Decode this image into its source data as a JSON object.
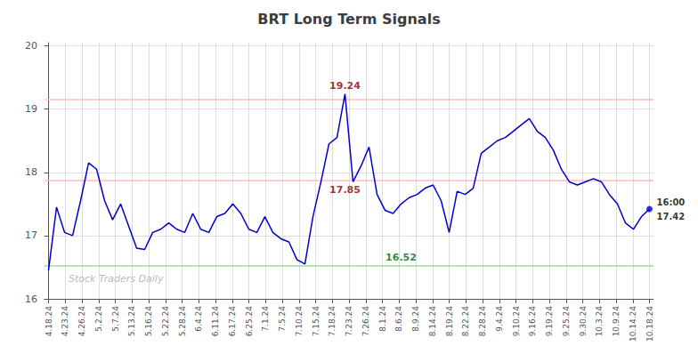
{
  "chart_data": {
    "type": "line",
    "title": "BRT Long Term Signals",
    "x": [
      0,
      1,
      2,
      3,
      4,
      5,
      6,
      7,
      8,
      9,
      10,
      11,
      12,
      13,
      14,
      15,
      16,
      17,
      18,
      19,
      20,
      21,
      22,
      23,
      24,
      25,
      26,
      27,
      28,
      29,
      30,
      31,
      32,
      33,
      34,
      35,
      36,
      37,
      38,
      39,
      40,
      41,
      42,
      43,
      44,
      45,
      46,
      47,
      48,
      49,
      50,
      51,
      52,
      53,
      54,
      55,
      56,
      57,
      58,
      59,
      60,
      61,
      62,
      63,
      64,
      65,
      66,
      67,
      68,
      69,
      70,
      71,
      72,
      73,
      74,
      75
    ],
    "values": [
      16.45,
      17.45,
      17.05,
      17.0,
      17.55,
      18.15,
      18.05,
      17.55,
      17.25,
      17.5,
      17.15,
      16.8,
      16.78,
      17.05,
      17.1,
      17.2,
      17.1,
      17.05,
      17.35,
      17.1,
      17.05,
      17.3,
      17.35,
      17.5,
      17.35,
      17.1,
      17.05,
      17.3,
      17.05,
      16.95,
      16.9,
      16.62,
      16.55,
      17.3,
      17.85,
      18.45,
      18.55,
      19.24,
      17.85,
      18.1,
      18.4,
      17.65,
      17.4,
      17.35,
      17.5,
      17.6,
      17.65,
      17.75,
      17.8,
      17.55,
      17.05,
      17.7,
      17.65,
      17.75,
      18.3,
      18.4,
      18.5,
      18.55,
      18.65,
      18.75,
      18.85,
      18.65,
      18.55,
      18.35,
      18.05,
      17.85,
      17.8,
      17.85,
      17.9,
      17.85,
      17.65,
      17.5,
      17.2,
      17.1,
      17.3,
      17.42
    ],
    "color": "#0000cc",
    "xlim": [
      -0.5,
      75.5
    ],
    "xticks": [
      {
        "value": 0,
        "label": "4.18.24"
      },
      {
        "value": 2.0833333333333335,
        "label": "4.23.24"
      },
      {
        "value": 4.166666666666667,
        "label": "4.26.24"
      },
      {
        "value": 6.25,
        "label": "5.2.24"
      },
      {
        "value": 8.333333333333334,
        "label": "5.7.24"
      },
      {
        "value": 10.416666666666666,
        "label": "5.13.24"
      },
      {
        "value": 12.5,
        "label": "5.16.24"
      },
      {
        "value": 14.583333333333334,
        "label": "5.22.24"
      },
      {
        "value": 16.666666666666668,
        "label": "5.28.24"
      },
      {
        "value": 18.75,
        "label": "6.4.24"
      },
      {
        "value": 20.833333333333336,
        "label": "6.11.24"
      },
      {
        "value": 22.916666666666668,
        "label": "6.17.24"
      },
      {
        "value": 25,
        "label": "6.25.24"
      },
      {
        "value": 27.083333333333336,
        "label": "7.1.24"
      },
      {
        "value": 29.166666666666668,
        "label": "7.5.24"
      },
      {
        "value": 31.25,
        "label": "7.10.24"
      },
      {
        "value": 33.333333333333336,
        "label": "7.15.24"
      },
      {
        "value": 35.416666666666664,
        "label": "7.18.24"
      },
      {
        "value": 37.5,
        "label": "7.23.24"
      },
      {
        "value": 39.583333333333336,
        "label": "7.26.24"
      },
      {
        "value": 41.66666666666667,
        "label": "8.1.24"
      },
      {
        "value": 43.75,
        "label": "8.6.24"
      },
      {
        "value": 45.833333333333336,
        "label": "8.9.24"
      },
      {
        "value": 47.91666666666667,
        "label": "8.14.24"
      },
      {
        "value": 50,
        "label": "8.19.24"
      },
      {
        "value": 52.083333333333336,
        "label": "8.22.24"
      },
      {
        "value": 54.16666666666667,
        "label": "8.28.24"
      },
      {
        "value": 56.25,
        "label": "9.4.24"
      },
      {
        "value": 58.333333333333336,
        "label": "9.10.24"
      },
      {
        "value": 60.41666666666667,
        "label": "9.16.24"
      },
      {
        "value": 62.5,
        "label": "9.19.24"
      },
      {
        "value": 64.58333333333334,
        "label": "9.25.24"
      },
      {
        "value": 66.66666666666667,
        "label": "9.30.24"
      },
      {
        "value": 68.75,
        "label": "10.3.24"
      },
      {
        "value": 70.83333333333334,
        "label": "10.9.24"
      },
      {
        "value": 72.91666666666667,
        "label": "10.14.24"
      },
      {
        "value": 75,
        "label": "10.18.24"
      }
    ],
    "ylim": [
      16.0,
      20.05
    ],
    "yticks": [
      16,
      17,
      18,
      19,
      20
    ],
    "grid": true,
    "reference_lines": [
      {
        "y": 19.15,
        "color": "#ffbbbb"
      },
      {
        "y": 17.88,
        "color": "#ffbbbb"
      },
      {
        "y": 16.52,
        "color": "#99dd99"
      }
    ],
    "labels_above": [
      {
        "text": "19.24",
        "x": 37,
        "y": 19.24,
        "color": "#880000"
      },
      {
        "text": "16.52",
        "x": 44,
        "y": 16.52,
        "color": "#006600"
      }
    ],
    "labels_below": [
      {
        "text": "17.85",
        "x": 38,
        "y": 17.85,
        "color": "#880000"
      }
    ],
    "watermark": {
      "text": "Stock Traders Daily",
      "color": "#bbbbbb"
    },
    "last_point_color": "#0000cc",
    "end_labels": [
      "16:00",
      "17.42"
    ],
    "end_label_color": "#000000"
  }
}
